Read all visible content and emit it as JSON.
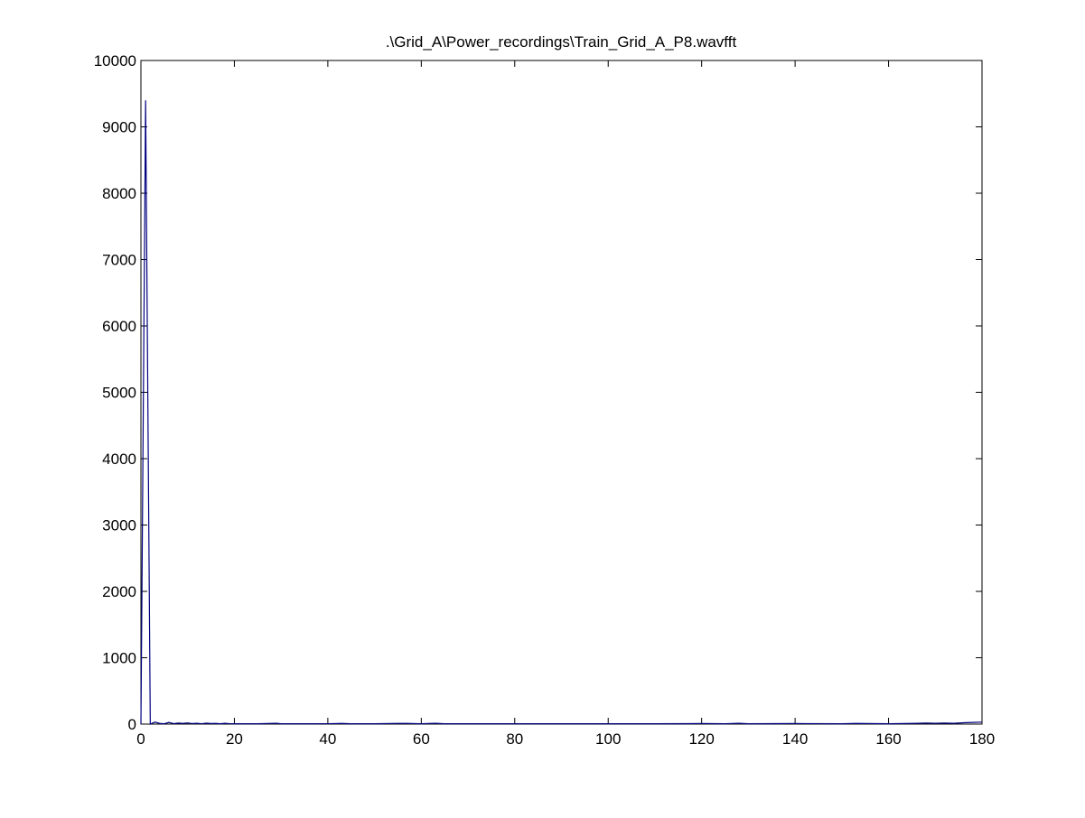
{
  "chart_data": {
    "type": "line",
    "title": ".\\Grid_A\\Power_recordings\\Train_Grid_A_P8.wavfft",
    "xlabel": "",
    "ylabel": "",
    "xlim": [
      0,
      180
    ],
    "ylim": [
      0,
      10000
    ],
    "x_ticks": [
      0,
      20,
      40,
      60,
      80,
      100,
      120,
      140,
      160,
      180
    ],
    "y_ticks": [
      0,
      1000,
      2000,
      3000,
      4000,
      5000,
      6000,
      7000,
      8000,
      9000,
      10000
    ],
    "grid": false,
    "legend": "none",
    "line_color": "#00007f",
    "series": [
      {
        "x": [
          0,
          1,
          2,
          3,
          4,
          5,
          6,
          7,
          8,
          9,
          10,
          11,
          12,
          13,
          14,
          15,
          16,
          17,
          18,
          19,
          20,
          25,
          29,
          30,
          35,
          40,
          43,
          45,
          50,
          55,
          57,
          60,
          63,
          65,
          70,
          75,
          80,
          90,
          100,
          110,
          120,
          125,
          128,
          130,
          140,
          150,
          153,
          160,
          165,
          168,
          170,
          172,
          174,
          176,
          178,
          180
        ],
        "y": [
          0,
          9400,
          0,
          30,
          10,
          5,
          25,
          8,
          15,
          10,
          18,
          8,
          12,
          6,
          14,
          8,
          10,
          5,
          12,
          6,
          5,
          5,
          12,
          5,
          5,
          6,
          10,
          5,
          5,
          10,
          10,
          5,
          12,
          5,
          5,
          5,
          5,
          5,
          5,
          5,
          8,
          5,
          12,
          5,
          8,
          5,
          10,
          5,
          10,
          15,
          12,
          15,
          12,
          20,
          25,
          30
        ]
      }
    ]
  }
}
